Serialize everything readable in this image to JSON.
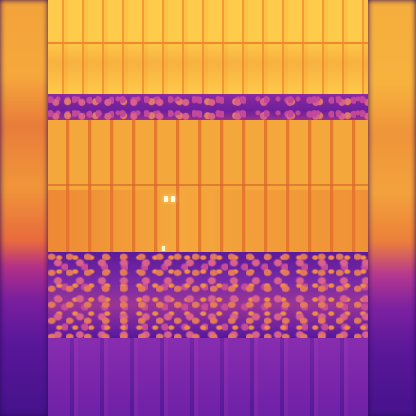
{
  "image": {
    "kind": "thermal-photo",
    "palette": [
      "#2c0a5e",
      "#7a24ad",
      "#c3489a",
      "#f08a34",
      "#ffcb4a",
      "#fffbe0"
    ]
  }
}
